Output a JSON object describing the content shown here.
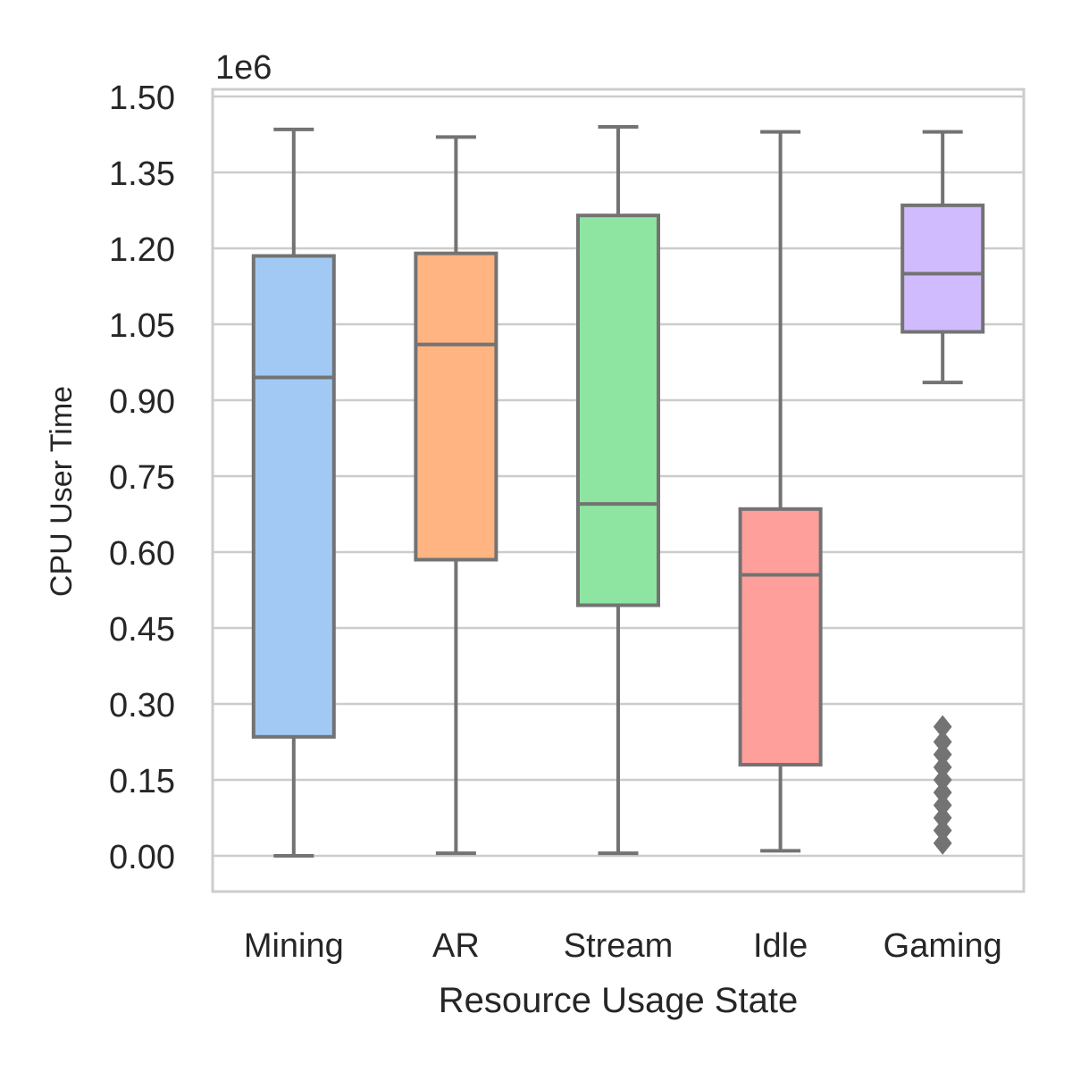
{
  "chart_data": {
    "type": "box",
    "xlabel": "Resource Usage State",
    "ylabel": "CPU User Time",
    "y_multiplier": "1e6",
    "ylim": [
      -0.07,
      1.5
    ],
    "yticks": [
      "0.00",
      "0.15",
      "0.30",
      "0.45",
      "0.60",
      "0.75",
      "0.90",
      "1.05",
      "1.20",
      "1.35",
      "1.50"
    ],
    "ytick_values": [
      0,
      0.15,
      0.3,
      0.45,
      0.6,
      0.75,
      0.9,
      1.05,
      1.2,
      1.35,
      1.5
    ],
    "grid": true,
    "categories": [
      "Mining",
      "AR",
      "Stream",
      "Idle",
      "Gaming"
    ],
    "boxes": [
      {
        "category": "Mining",
        "whisker_low": 0.0,
        "q1": 0.235,
        "median": 0.945,
        "q3": 1.185,
        "whisker_high": 1.435,
        "outliers": [],
        "color": "#a1c9f4"
      },
      {
        "category": "AR",
        "whisker_low": 0.005,
        "q1": 0.585,
        "median": 1.01,
        "q3": 1.19,
        "whisker_high": 1.42,
        "outliers": [],
        "color": "#ffb482"
      },
      {
        "category": "Stream",
        "whisker_low": 0.005,
        "q1": 0.495,
        "median": 0.695,
        "q3": 1.265,
        "whisker_high": 1.44,
        "outliers": [],
        "color": "#8de5a1"
      },
      {
        "category": "Idle",
        "whisker_low": 0.01,
        "q1": 0.18,
        "median": 0.555,
        "q3": 0.685,
        "whisker_high": 1.43,
        "outliers": [],
        "color": "#ff9f9b"
      },
      {
        "category": "Gaming",
        "whisker_low": 0.935,
        "q1": 1.035,
        "median": 1.15,
        "q3": 1.285,
        "whisker_high": 1.43,
        "outliers": [
          0.025,
          0.05,
          0.075,
          0.1,
          0.125,
          0.15,
          0.175,
          0.2,
          0.225,
          0.255
        ],
        "color": "#d0bbff"
      }
    ],
    "colors": {
      "line": "#737373",
      "grid": "#cccccc",
      "frame": "#cccccc"
    }
  }
}
